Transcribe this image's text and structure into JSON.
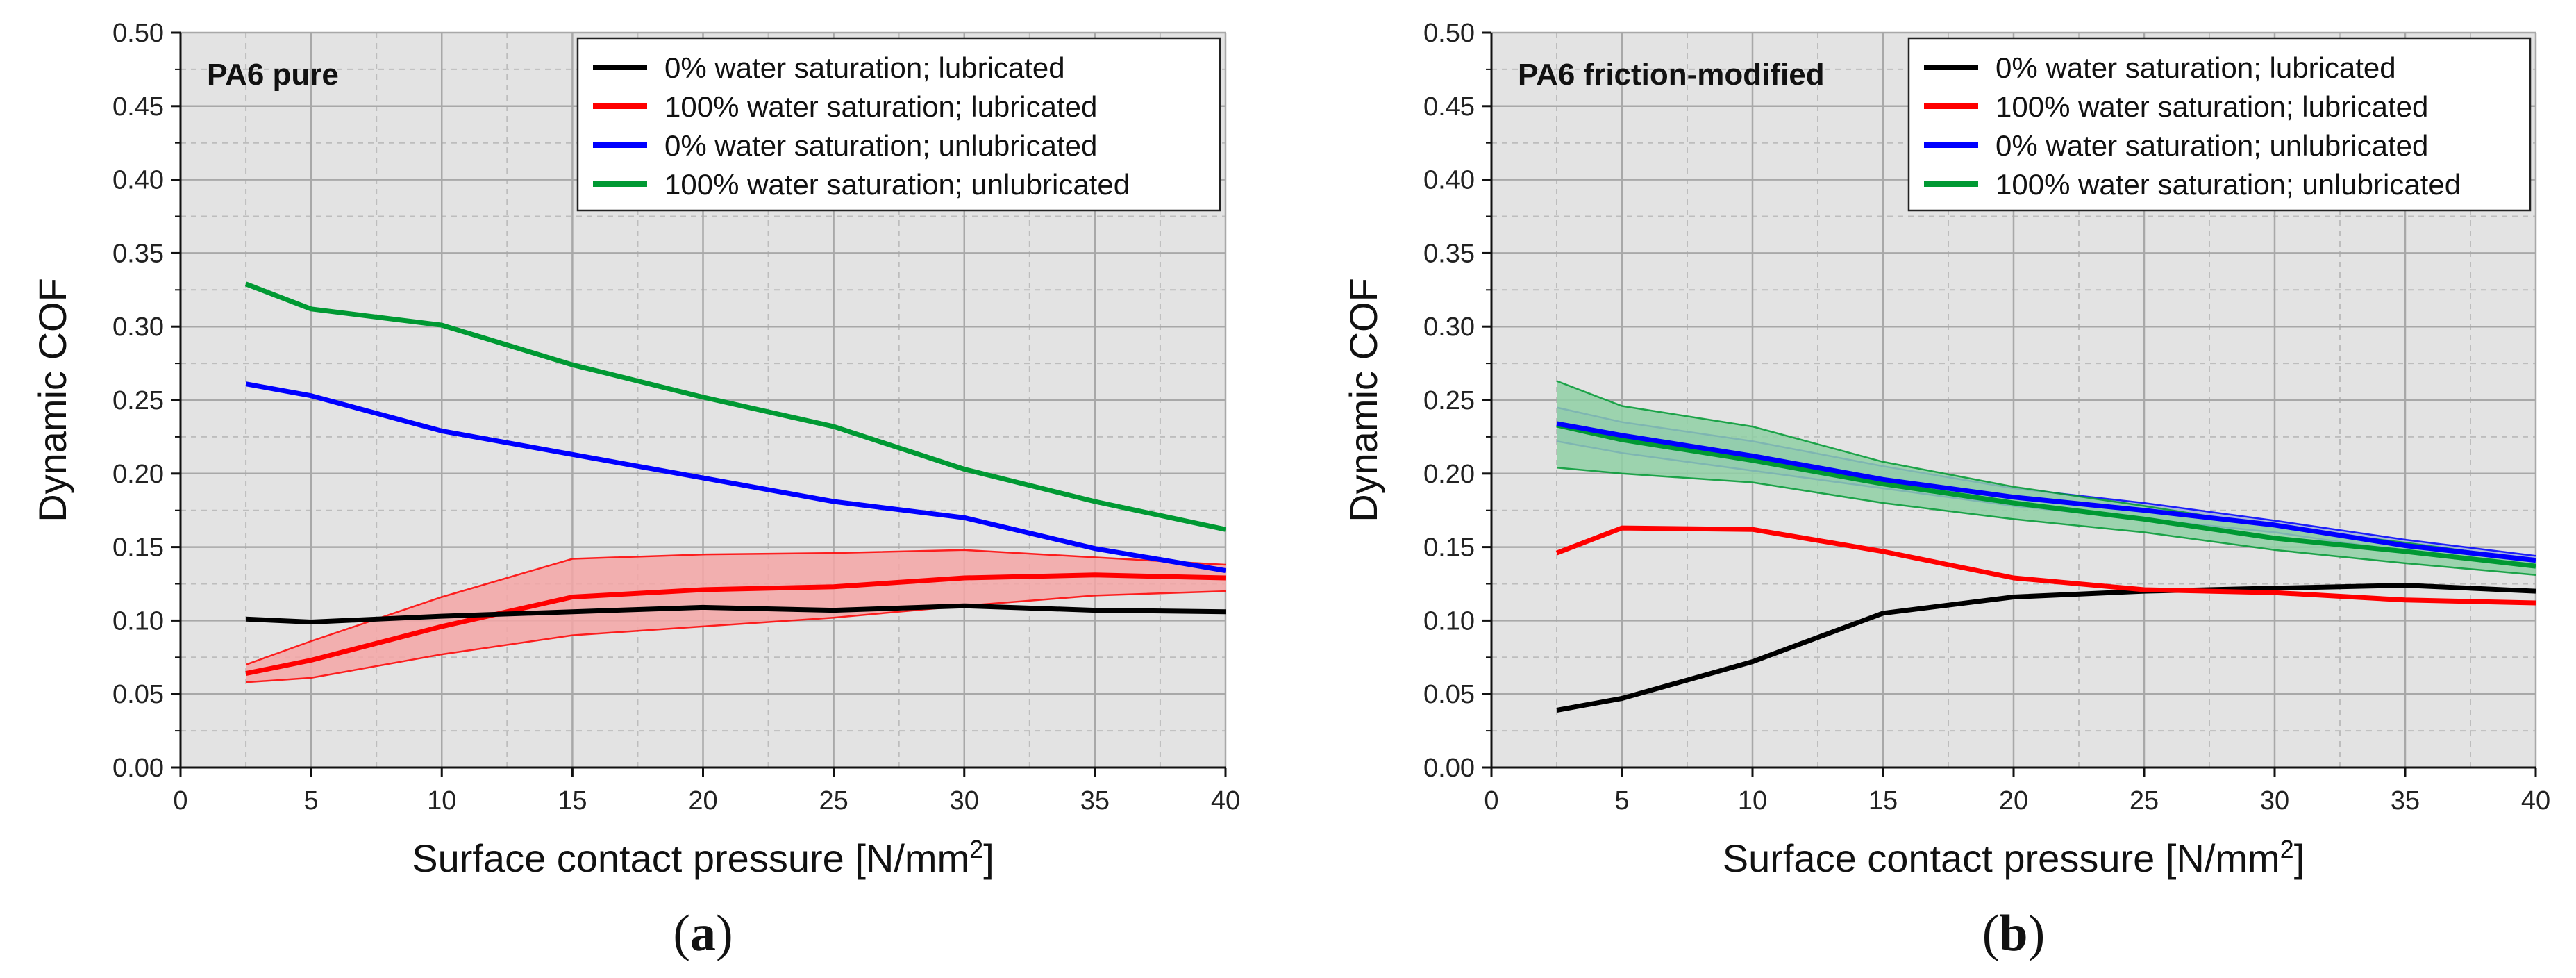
{
  "chart_data": [
    {
      "type": "line",
      "panel_label": "(a)",
      "panel_label_parts": [
        "(",
        "a",
        ")"
      ],
      "title": "PA6 pure",
      "xlabel": "Surface contact pressure [N/mm",
      "xlabel_sup": "2",
      "xlabel_end": "]",
      "ylabel": "Dynamic COF",
      "xlim": [
        0,
        40
      ],
      "ylim": [
        0,
        0.5
      ],
      "xticks": [
        0,
        5,
        10,
        15,
        20,
        25,
        30,
        35,
        40
      ],
      "xtick_labels": [
        "0",
        "5",
        "10",
        "15",
        "20",
        "25",
        "30",
        "35",
        "40"
      ],
      "yticks": [
        0,
        0.05,
        0.1,
        0.15,
        0.2,
        0.25,
        0.3,
        0.35,
        0.4,
        0.45,
        0.5
      ],
      "ytick_labels": [
        "0.00",
        "0.05",
        "0.10",
        "0.15",
        "0.20",
        "0.25",
        "0.30",
        "0.35",
        "0.40",
        "0.45",
        "0.50"
      ],
      "grid": true,
      "legend_position": "top-right",
      "x": [
        2.5,
        5,
        10,
        15,
        20,
        25,
        30,
        35,
        40
      ],
      "series": [
        {
          "name": "0% water saturation; lubricated",
          "color": "#000000",
          "values": [
            0.101,
            0.099,
            0.103,
            0.106,
            0.109,
            0.107,
            0.11,
            0.107,
            0.106
          ]
        },
        {
          "name": "100% water saturation; lubricated",
          "color": "#ff0000",
          "values": [
            0.064,
            0.073,
            0.096,
            0.116,
            0.121,
            0.123,
            0.129,
            0.131,
            0.129
          ],
          "band_upper": [
            0.07,
            0.086,
            0.116,
            0.142,
            0.145,
            0.146,
            0.148,
            0.143,
            0.138
          ],
          "band_lower": [
            0.058,
            0.061,
            0.077,
            0.09,
            0.096,
            0.102,
            0.11,
            0.117,
            0.12
          ],
          "band_color": "#f4a6a6"
        },
        {
          "name": "0% water saturation; unlubricated",
          "color": "#0000ff",
          "values": [
            0.261,
            0.253,
            0.229,
            0.213,
            0.197,
            0.181,
            0.17,
            0.149,
            0.134
          ]
        },
        {
          "name": "100% water saturation; unlubricated",
          "color": "#009933",
          "values": [
            0.329,
            0.312,
            0.301,
            0.274,
            0.252,
            0.232,
            0.203,
            0.181,
            0.162
          ]
        }
      ]
    },
    {
      "type": "line",
      "panel_label": "(b)",
      "panel_label_parts": [
        "(",
        "b",
        ")"
      ],
      "title": "PA6 friction-modified",
      "xlabel": "Surface contact pressure [N/mm",
      "xlabel_sup": "2",
      "xlabel_end": "]",
      "ylabel": "Dynamic COF",
      "xlim": [
        0,
        40
      ],
      "ylim": [
        0,
        0.5
      ],
      "xticks": [
        0,
        5,
        10,
        15,
        20,
        25,
        30,
        35,
        40
      ],
      "xtick_labels": [
        "0",
        "5",
        "10",
        "15",
        "20",
        "25",
        "30",
        "35",
        "40"
      ],
      "yticks": [
        0,
        0.05,
        0.1,
        0.15,
        0.2,
        0.25,
        0.3,
        0.35,
        0.4,
        0.45,
        0.5
      ],
      "ytick_labels": [
        "0.00",
        "0.05",
        "0.10",
        "0.15",
        "0.20",
        "0.25",
        "0.30",
        "0.35",
        "0.40",
        "0.45",
        "0.50"
      ],
      "grid": true,
      "legend_position": "top-right",
      "x": [
        2.5,
        5,
        10,
        15,
        20,
        25,
        30,
        35,
        40
      ],
      "series": [
        {
          "name": "0% water saturation; lubricated",
          "color": "#000000",
          "values": [
            0.039,
            0.047,
            0.072,
            0.105,
            0.116,
            0.12,
            0.122,
            0.124,
            0.12
          ]
        },
        {
          "name": "100% water saturation; lubricated",
          "color": "#ff0000",
          "values": [
            0.146,
            0.163,
            0.162,
            0.147,
            0.129,
            0.121,
            0.119,
            0.114,
            0.112
          ]
        },
        {
          "name": "0% water saturation; unlubricated",
          "color": "#0000ff",
          "values": [
            0.234,
            0.226,
            0.212,
            0.196,
            0.184,
            0.175,
            0.165,
            0.151,
            0.141
          ],
          "band_upper": [
            0.245,
            0.235,
            0.222,
            0.205,
            0.19,
            0.18,
            0.168,
            0.155,
            0.144
          ],
          "band_lower": [
            0.222,
            0.214,
            0.202,
            0.19,
            0.178,
            0.169,
            0.16,
            0.147,
            0.137
          ],
          "band_color": "#9fb0d8"
        },
        {
          "name": "100% water saturation; unlubricated",
          "color": "#009933",
          "values": [
            0.233,
            0.223,
            0.209,
            0.193,
            0.18,
            0.169,
            0.156,
            0.147,
            0.137
          ],
          "band_upper": [
            0.263,
            0.246,
            0.232,
            0.208,
            0.191,
            0.178,
            0.164,
            0.153,
            0.141
          ],
          "band_lower": [
            0.204,
            0.2,
            0.194,
            0.18,
            0.169,
            0.16,
            0.148,
            0.139,
            0.131
          ],
          "band_color": "#8fd0a4"
        }
      ]
    }
  ]
}
